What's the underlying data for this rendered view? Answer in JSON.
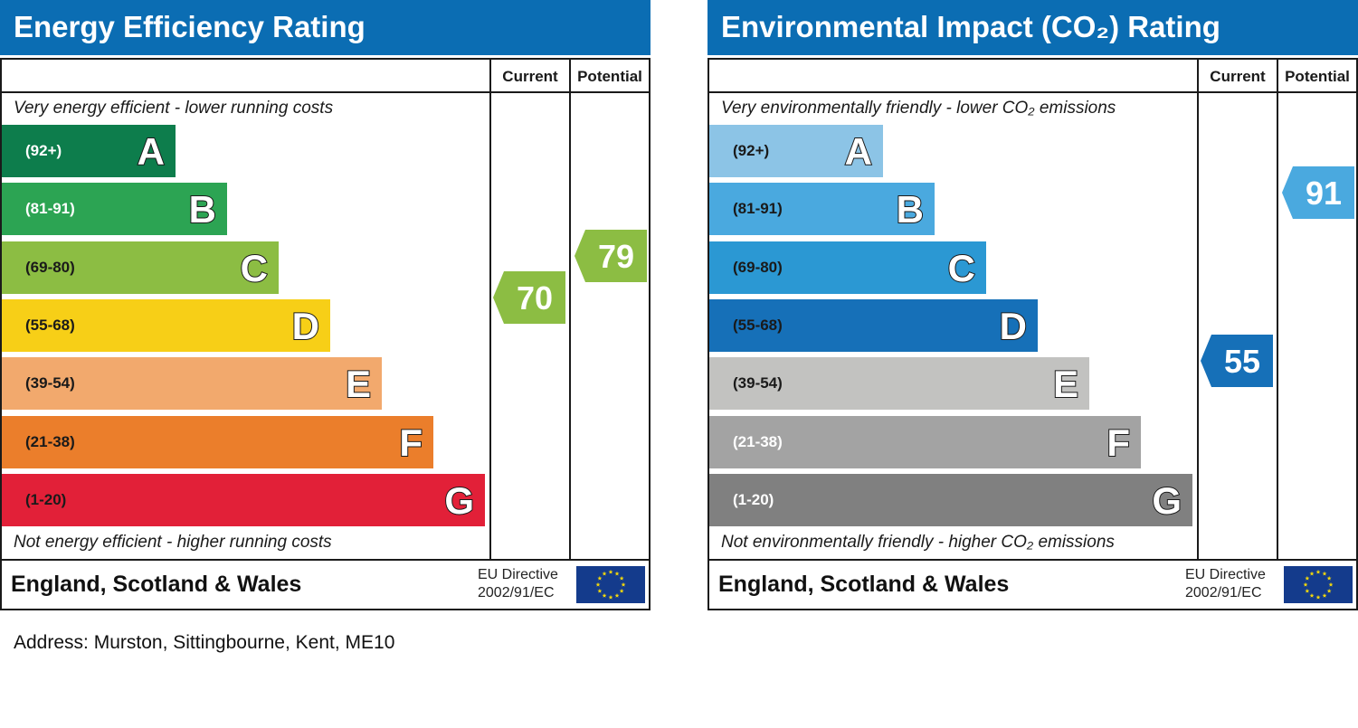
{
  "address": "Address: Murston, Sittingbourne, Kent, ME10",
  "chart_data": [
    {
      "type": "bar",
      "title": "Energy Efficiency Rating",
      "column_headers": [
        "Current",
        "Potential"
      ],
      "top_note": "Very energy efficient - lower running costs",
      "bottom_note": "Not energy efficient - higher running costs",
      "bands": [
        {
          "letter": "A",
          "range": "(92+)",
          "color": "#0d7d4c",
          "text_color": "#ffffff"
        },
        {
          "letter": "B",
          "range": "(81-91)",
          "color": "#2ca453",
          "text_color": "#ffffff"
        },
        {
          "letter": "C",
          "range": "(69-80)",
          "color": "#8cbd43",
          "text_color": "#1a1a1a"
        },
        {
          "letter": "D",
          "range": "(55-68)",
          "color": "#f7cf17",
          "text_color": "#1a1a1a"
        },
        {
          "letter": "E",
          "range": "(39-54)",
          "color": "#f2a96d",
          "text_color": "#1a1a1a"
        },
        {
          "letter": "F",
          "range": "(21-38)",
          "color": "#eb7e2b",
          "text_color": "#1a1a1a"
        },
        {
          "letter": "G",
          "range": "(1-20)",
          "color": "#e22038",
          "text_color": "#1a1a1a"
        }
      ],
      "current": {
        "value": 70,
        "display": "70",
        "band": "C",
        "color": "#8cbd43"
      },
      "potential": {
        "value": 79,
        "display": "79",
        "band": "C",
        "color": "#8cbd43"
      },
      "footer_region": "England, Scotland & Wales",
      "footer_directive": [
        "EU Directive",
        "2002/91/EC"
      ]
    },
    {
      "type": "bar",
      "title": "Environmental Impact (CO₂) Rating",
      "column_headers": [
        "Current",
        "Potential"
      ],
      "top_note": "Very environmentally friendly - lower CO₂ emissions",
      "bottom_note": "Not environmentally friendly - higher CO₂ emissions",
      "bands": [
        {
          "letter": "A",
          "range": "(92+)",
          "color": "#8cc4e6",
          "text_color": "#1a1a1a"
        },
        {
          "letter": "B",
          "range": "(81-91)",
          "color": "#4aa9df",
          "text_color": "#1a1a1a"
        },
        {
          "letter": "C",
          "range": "(69-80)",
          "color": "#2b98d3",
          "text_color": "#1a1a1a"
        },
        {
          "letter": "D",
          "range": "(55-68)",
          "color": "#1670b8",
          "text_color": "#1a1a1a"
        },
        {
          "letter": "E",
          "range": "(39-54)",
          "color": "#c2c2c0",
          "text_color": "#1a1a1a"
        },
        {
          "letter": "F",
          "range": "(21-38)",
          "color": "#a3a3a3",
          "text_color": "#ffffff"
        },
        {
          "letter": "G",
          "range": "(1-20)",
          "color": "#808080",
          "text_color": "#ffffff"
        }
      ],
      "current": {
        "value": 55,
        "display": "55",
        "band": "D",
        "color": "#1670b8"
      },
      "potential": {
        "value": 91,
        "display": "91",
        "band": "B",
        "color": "#4aa9df"
      },
      "footer_region": "England, Scotland & Wales",
      "footer_directive": [
        "EU Directive",
        "2002/91/EC"
      ]
    }
  ]
}
